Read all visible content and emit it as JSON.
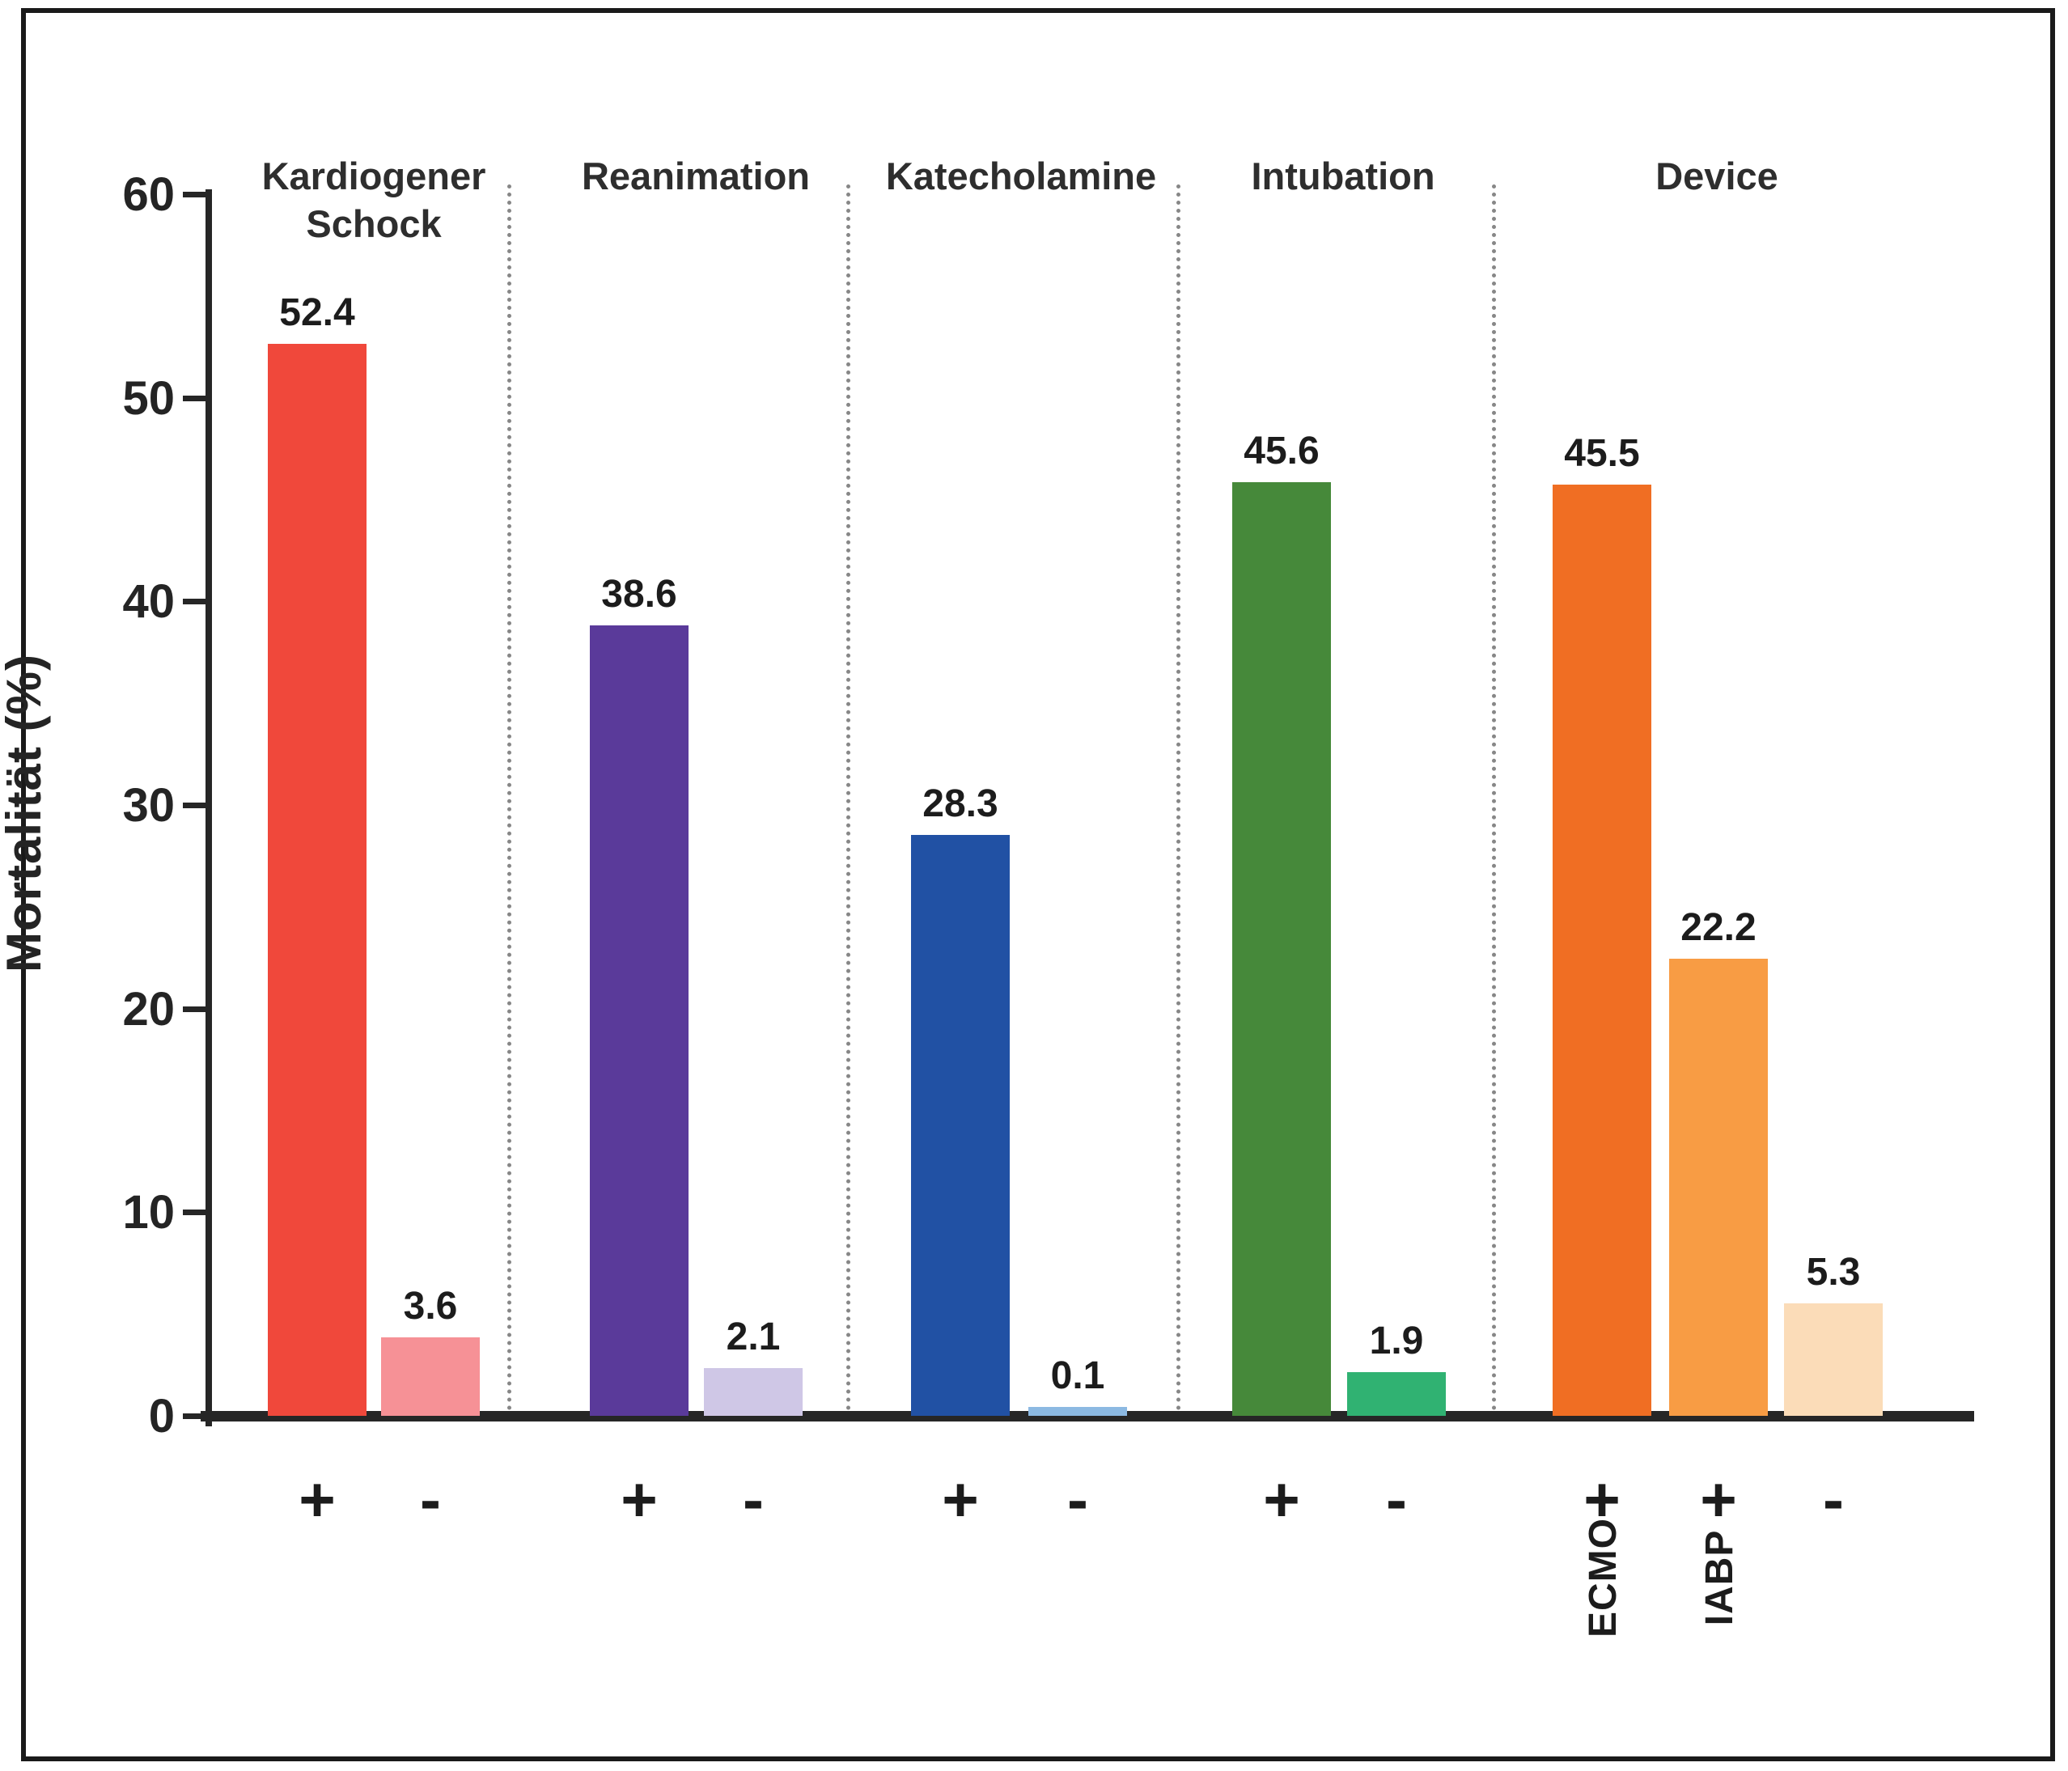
{
  "figure": {
    "background": "#ffffff",
    "border_color": "#1a1a1a"
  },
  "chart_data": {
    "type": "bar",
    "title": "",
    "ylabel": "Mortalität (%)",
    "xlabel": "",
    "ylim": [
      0,
      60
    ],
    "yticks": [
      0,
      10,
      20,
      30,
      40,
      50,
      60
    ],
    "grid": false,
    "legend": "none",
    "group_separator_style": "dotted",
    "groups": [
      {
        "label": "Kardiogener Schock",
        "bars": [
          {
            "sign": "+",
            "value": 52.4,
            "color": "#F0483B"
          },
          {
            "sign": "-",
            "value": 3.6,
            "color": "#F69196"
          }
        ]
      },
      {
        "label": "Reanimation",
        "bars": [
          {
            "sign": "+",
            "value": 38.6,
            "color": "#5A3A9A"
          },
          {
            "sign": "-",
            "value": 2.1,
            "color": "#CFC7E6"
          }
        ]
      },
      {
        "label": "Katecholamine",
        "bars": [
          {
            "sign": "+",
            "value": 28.3,
            "color": "#2151A4"
          },
          {
            "sign": "-",
            "value": 0.1,
            "color": "#8CB9E2"
          }
        ]
      },
      {
        "label": "Intubation",
        "bars": [
          {
            "sign": "+",
            "value": 45.6,
            "color": "#46893A"
          },
          {
            "sign": "-",
            "value": 1.9,
            "color": "#30B272"
          }
        ]
      },
      {
        "label": "Device",
        "bars": [
          {
            "sign": "+",
            "device": "ECMO",
            "value": 45.5,
            "color": "#F06E23"
          },
          {
            "sign": "+",
            "device": "IABP",
            "value": 22.2,
            "color": "#F89C44"
          },
          {
            "sign": "-",
            "value": 5.3,
            "color": "#FBDCB8"
          }
        ]
      }
    ]
  }
}
